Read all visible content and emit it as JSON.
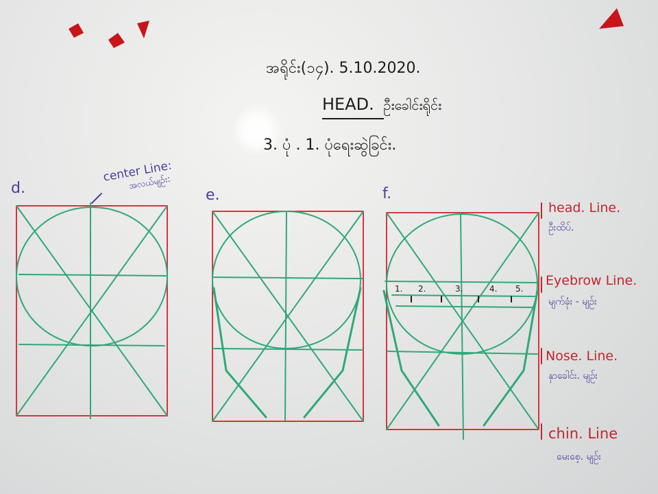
{
  "board": {
    "title_line1": "အရိုင်း(၁၄). 5.10.2020.",
    "title_line2_en": "HEAD.",
    "title_line2_my": "ဦးခေါင်းရိုင်း",
    "title_line3": "3. ပုံ . 1. ပုံရေးဆွဲခြင်း."
  },
  "diagrams": [
    {
      "label": "d."
    },
    {
      "label": "e."
    },
    {
      "label": "f."
    }
  ],
  "center_line": {
    "en": "center Line:",
    "my": "အလယ်မျဉ်း:"
  },
  "guide_lines": [
    {
      "en": "head. Line.",
      "my": "ဦးထိပ်."
    },
    {
      "en": "Eyebrow Line.",
      "my": "မျက်ခုံး - မျဉ်း"
    },
    {
      "en": "Nose. Line.",
      "my": "နှာခေါင်း. မျဉ်း"
    },
    {
      "en": "chin. Line",
      "my": "မေးစေ့. မျဉ်း"
    }
  ],
  "eye_numbers": [
    "1.",
    "2.",
    "3.",
    "4.",
    "5."
  ],
  "colors": {
    "frame": "#d8343f",
    "construction": "#2fa878",
    "text_dark": "#1c1c1c",
    "text_red": "#c3242b",
    "text_blue": "#4a3f9a",
    "magnet": "#c8141b"
  }
}
